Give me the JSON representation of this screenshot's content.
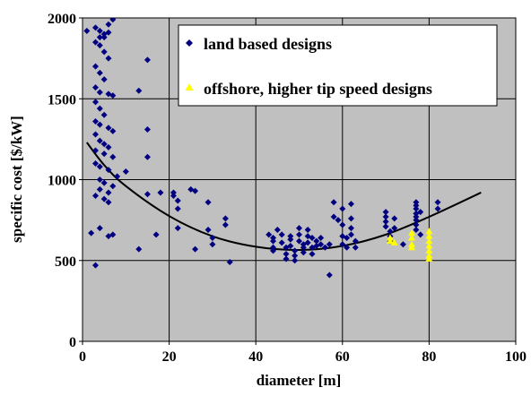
{
  "chart_data": {
    "type": "scatter",
    "xlabel": "diameter [m]",
    "ylabel": "specific cost [$/kW]",
    "xlim": [
      0,
      100
    ],
    "ylim": [
      0,
      2000
    ],
    "xticks": [
      "0",
      "20",
      "40",
      "60",
      "80",
      "100"
    ],
    "yticks": [
      "0",
      "500",
      "1000",
      "1500",
      "2000"
    ],
    "plot_background": "#c0c0c0",
    "grid": true,
    "legend_position": "top-right",
    "series": [
      {
        "name": "land based designs",
        "marker": "diamond",
        "color": "#000080",
        "points": [
          [
            1,
            1920
          ],
          [
            2,
            670
          ],
          [
            3,
            1940
          ],
          [
            4,
            1880
          ],
          [
            5,
            1900
          ],
          [
            6,
            1960
          ],
          [
            7,
            1990
          ],
          [
            4,
            1920
          ],
          [
            5,
            1880
          ],
          [
            6,
            1910
          ],
          [
            3,
            1850
          ],
          [
            4,
            1830
          ],
          [
            5,
            1790
          ],
          [
            6,
            1750
          ],
          [
            3,
            1700
          ],
          [
            4,
            1660
          ],
          [
            5,
            1620
          ],
          [
            3,
            1570
          ],
          [
            4,
            1540
          ],
          [
            6,
            1530
          ],
          [
            7,
            1520
          ],
          [
            3,
            1480
          ],
          [
            4,
            1440
          ],
          [
            5,
            1400
          ],
          [
            3,
            1360
          ],
          [
            4,
            1340
          ],
          [
            6,
            1320
          ],
          [
            7,
            1300
          ],
          [
            3,
            1280
          ],
          [
            4,
            1240
          ],
          [
            5,
            1220
          ],
          [
            6,
            1200
          ],
          [
            3,
            1180
          ],
          [
            5,
            1160
          ],
          [
            7,
            1140
          ],
          [
            3,
            1100
          ],
          [
            4,
            1080
          ],
          [
            6,
            1060
          ],
          [
            8,
            1020
          ],
          [
            4,
            1000
          ],
          [
            5,
            980
          ],
          [
            7,
            960
          ],
          [
            4,
            940
          ],
          [
            6,
            920
          ],
          [
            3,
            900
          ],
          [
            5,
            880
          ],
          [
            6,
            860
          ],
          [
            4,
            700
          ],
          [
            6,
            650
          ],
          [
            7,
            660
          ],
          [
            3,
            470
          ],
          [
            13,
            1550
          ],
          [
            15,
            1740
          ],
          [
            15,
            1310
          ],
          [
            15,
            1140
          ],
          [
            10,
            1050
          ],
          [
            15,
            910
          ],
          [
            18,
            920
          ],
          [
            17,
            660
          ],
          [
            13,
            570
          ],
          [
            21,
            920
          ],
          [
            21,
            900
          ],
          [
            22,
            870
          ],
          [
            22,
            820
          ],
          [
            22,
            700
          ],
          [
            25,
            940
          ],
          [
            26,
            930
          ],
          [
            26,
            570
          ],
          [
            29,
            860
          ],
          [
            29,
            690
          ],
          [
            30,
            640
          ],
          [
            30,
            600
          ],
          [
            33,
            760
          ],
          [
            33,
            720
          ],
          [
            34,
            490
          ],
          [
            43,
            660
          ],
          [
            44,
            640
          ],
          [
            44,
            620
          ],
          [
            44,
            580
          ],
          [
            44,
            560
          ],
          [
            45,
            690
          ],
          [
            46,
            660
          ],
          [
            46,
            610
          ],
          [
            47,
            580
          ],
          [
            47,
            540
          ],
          [
            47,
            510
          ],
          [
            48,
            650
          ],
          [
            48,
            630
          ],
          [
            48,
            590
          ],
          [
            49,
            560
          ],
          [
            49,
            530
          ],
          [
            49,
            500
          ],
          [
            50,
            700
          ],
          [
            50,
            660
          ],
          [
            50,
            620
          ],
          [
            51,
            600
          ],
          [
            51,
            580
          ],
          [
            51,
            550
          ],
          [
            52,
            690
          ],
          [
            52,
            650
          ],
          [
            52,
            610
          ],
          [
            53,
            640
          ],
          [
            53,
            580
          ],
          [
            53,
            540
          ],
          [
            54,
            620
          ],
          [
            54,
            590
          ],
          [
            55,
            640
          ],
          [
            55,
            600
          ],
          [
            56,
            580
          ],
          [
            57,
            600
          ],
          [
            57,
            410
          ],
          [
            58,
            860
          ],
          [
            58,
            770
          ],
          [
            59,
            750
          ],
          [
            60,
            820
          ],
          [
            60,
            720
          ],
          [
            60,
            650
          ],
          [
            60,
            600
          ],
          [
            61,
            640
          ],
          [
            61,
            580
          ],
          [
            62,
            850
          ],
          [
            62,
            760
          ],
          [
            62,
            700
          ],
          [
            62,
            660
          ],
          [
            63,
            620
          ],
          [
            63,
            580
          ],
          [
            70,
            800
          ],
          [
            70,
            770
          ],
          [
            70,
            740
          ],
          [
            70,
            710
          ],
          [
            71,
            680
          ],
          [
            71,
            650
          ],
          [
            71,
            620
          ],
          [
            72,
            700
          ],
          [
            72,
            760
          ],
          [
            74,
            600
          ],
          [
            77,
            860
          ],
          [
            77,
            840
          ],
          [
            77,
            820
          ],
          [
            77,
            790
          ],
          [
            77,
            770
          ],
          [
            77,
            750
          ],
          [
            77,
            720
          ],
          [
            77,
            690
          ],
          [
            78,
            800
          ],
          [
            78,
            660
          ],
          [
            82,
            860
          ],
          [
            82,
            820
          ]
        ]
      },
      {
        "name": "offshore, higher tip speed designs",
        "marker": "triangle",
        "color": "#ffff00",
        "points": [
          [
            71,
            620
          ],
          [
            71,
            640
          ],
          [
            72,
            610
          ],
          [
            76,
            670
          ],
          [
            76,
            640
          ],
          [
            76,
            600
          ],
          [
            76,
            580
          ],
          [
            80,
            680
          ],
          [
            80,
            650
          ],
          [
            80,
            620
          ],
          [
            80,
            590
          ],
          [
            80,
            560
          ],
          [
            80,
            530
          ],
          [
            80,
            510
          ]
        ]
      }
    ],
    "trendline": {
      "type": "polynomial",
      "color": "#000000",
      "points": [
        [
          1,
          1230
        ],
        [
          5,
          1090
        ],
        [
          10,
          960
        ],
        [
          20,
          775
        ],
        [
          30,
          650
        ],
        [
          40,
          585
        ],
        [
          50,
          565
        ],
        [
          60,
          590
        ],
        [
          70,
          660
        ],
        [
          80,
          770
        ],
        [
          92,
          920
        ]
      ]
    }
  }
}
